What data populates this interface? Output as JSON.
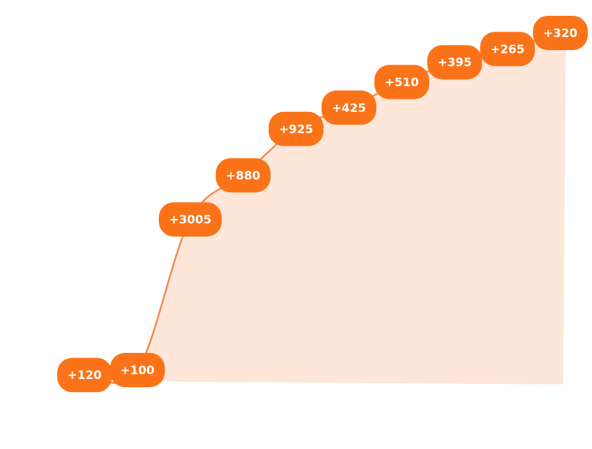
{
  "chart_data": {
    "type": "area",
    "categories": [
      null,
      null,
      null,
      null,
      null,
      null,
      null,
      null,
      null,
      null
    ],
    "values": [
      120,
      100,
      3005,
      880,
      925,
      425,
      510,
      395,
      265,
      320
    ],
    "value_labels": [
      "+120",
      "+100",
      "+3005",
      "+880",
      "+925",
      "+425",
      "+510",
      "+395",
      "+265",
      "+320"
    ],
    "color": "#fb7318",
    "line_color": "#f0894a",
    "fill_color": "#fee6d9"
  }
}
